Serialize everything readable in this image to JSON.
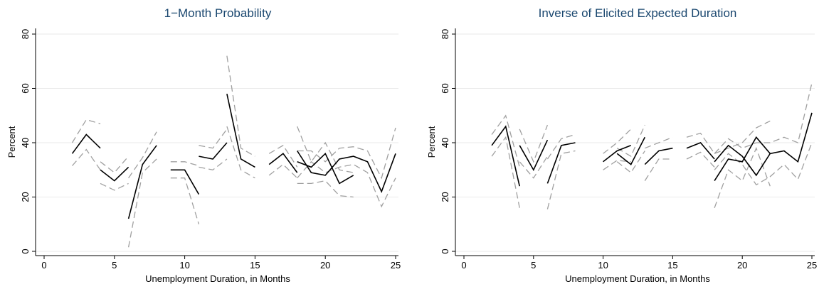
{
  "figure": {
    "panels": [
      {
        "title": "1−Month Probability",
        "xlabel": "Unemployment Duration, in Months",
        "ylabel": "Percent"
      },
      {
        "title": "Inverse of Elicited Expected Duration",
        "xlabel": "Unemployment Duration, in Months",
        "ylabel": "Percent"
      }
    ]
  },
  "chart_data": [
    {
      "type": "line",
      "title": "1−Month Probability",
      "xlabel": "Unemployment Duration, in Months",
      "ylabel": "Percent",
      "xlim": [
        0,
        25
      ],
      "ylim": [
        0,
        80
      ],
      "xticks": [
        0,
        5,
        10,
        15,
        20,
        25
      ],
      "yticks": [
        0,
        20,
        40,
        60,
        80
      ],
      "grid": true,
      "legend": "none",
      "colors": {
        "estimate": "#000000",
        "bounds": "#a0a0a0",
        "grid": "#eaeaea"
      },
      "series": [
        {
          "role": "estimate",
          "style": "solid",
          "segments": [
            [
              [
                2,
                36
              ],
              [
                3,
                43
              ],
              [
                4,
                38
              ]
            ],
            [
              [
                4,
                30
              ],
              [
                5,
                26
              ],
              [
                6,
                31
              ]
            ],
            [
              [
                6,
                12
              ],
              [
                7,
                32
              ],
              [
                8,
                39
              ]
            ],
            [
              [
                9,
                30
              ],
              [
                10,
                30
              ],
              [
                11,
                21
              ]
            ],
            [
              [
                11,
                35
              ],
              [
                12,
                34
              ],
              [
                13,
                40
              ]
            ],
            [
              [
                13,
                58
              ],
              [
                14,
                34
              ],
              [
                15,
                31
              ]
            ],
            [
              [
                16,
                32
              ],
              [
                17,
                36
              ],
              [
                18,
                29
              ]
            ],
            [
              [
                18,
                33
              ],
              [
                19,
                31
              ],
              [
                20,
                36
              ],
              [
                21,
                25
              ],
              [
                22,
                28
              ]
            ],
            [
              [
                18,
                37
              ],
              [
                19,
                29
              ],
              [
                20,
                28
              ],
              [
                21,
                34
              ],
              [
                22,
                35
              ],
              [
                23,
                33
              ],
              [
                24,
                22
              ],
              [
                25,
                36
              ]
            ]
          ]
        },
        {
          "role": "upper bound",
          "style": "dashed",
          "segments": [
            [
              [
                2,
                40
              ],
              [
                3,
                48.5
              ],
              [
                4,
                47
              ]
            ],
            [
              [
                4,
                33
              ],
              [
                5,
                29
              ],
              [
                6,
                35
              ]
            ],
            [
              [
                6,
                27
              ],
              [
                7,
                34.5
              ],
              [
                8,
                44
              ]
            ],
            [
              [
                9,
                33
              ],
              [
                10,
                33
              ],
              [
                11,
                31.5
              ]
            ],
            [
              [
                11,
                39
              ],
              [
                12,
                38
              ],
              [
                13,
                45
              ]
            ],
            [
              [
                13,
                72
              ],
              [
                14,
                38
              ],
              [
                15,
                35
              ]
            ],
            [
              [
                16,
                36
              ],
              [
                17,
                39
              ],
              [
                18,
                31
              ]
            ],
            [
              [
                18,
                46
              ],
              [
                19,
                33
              ],
              [
                20,
                40
              ],
              [
                21,
                30
              ],
              [
                22,
                29
              ]
            ],
            [
              [
                18,
                37
              ],
              [
                19,
                37
              ],
              [
                20,
                33
              ],
              [
                21,
                38
              ],
              [
                22,
                38.5
              ],
              [
                23,
                37
              ],
              [
                24,
                27
              ],
              [
                25,
                45.5
              ]
            ]
          ]
        },
        {
          "role": "lower bound",
          "style": "dashed",
          "segments": [
            [
              [
                2,
                31.5
              ],
              [
                3,
                37.5
              ],
              [
                4,
                30
              ]
            ],
            [
              [
                4,
                25
              ],
              [
                5,
                22.5
              ],
              [
                6,
                25
              ]
            ],
            [
              [
                6,
                1.5
              ],
              [
                7,
                29
              ],
              [
                8,
                34
              ]
            ],
            [
              [
                9,
                27
              ],
              [
                10,
                27
              ],
              [
                11,
                10
              ]
            ],
            [
              [
                11,
                31
              ],
              [
                12,
                30
              ],
              [
                13,
                34
              ]
            ],
            [
              [
                13,
                46
              ],
              [
                14,
                30
              ],
              [
                15,
                27
              ]
            ],
            [
              [
                16,
                28
              ],
              [
                17,
                32
              ],
              [
                18,
                27
              ]
            ],
            [
              [
                18,
                25
              ],
              [
                19,
                25
              ],
              [
                20,
                26
              ],
              [
                21,
                20.5
              ],
              [
                22,
                20
              ]
            ],
            [
              [
                18,
                27
              ],
              [
                19,
                33
              ],
              [
                20,
                29
              ],
              [
                21,
                31
              ],
              [
                22,
                32
              ],
              [
                23,
                29
              ],
              [
                24,
                16.5
              ],
              [
                25,
                27
              ]
            ]
          ]
        }
      ]
    },
    {
      "type": "line",
      "title": "Inverse of Elicited Expected Duration",
      "xlabel": "Unemployment Duration, in Months",
      "ylabel": "Percent",
      "xlim": [
        0,
        25
      ],
      "ylim": [
        0,
        80
      ],
      "xticks": [
        0,
        5,
        10,
        15,
        20,
        25
      ],
      "yticks": [
        0,
        20,
        40,
        60,
        80
      ],
      "grid": true,
      "legend": "none",
      "colors": {
        "estimate": "#000000",
        "bounds": "#a0a0a0",
        "grid": "#eaeaea"
      },
      "series": [
        {
          "role": "estimate",
          "style": "solid",
          "segments": [
            [
              [
                2,
                39
              ],
              [
                3,
                46
              ],
              [
                4,
                24
              ]
            ],
            [
              [
                4,
                39
              ],
              [
                5,
                30
              ],
              [
                6,
                41
              ]
            ],
            [
              [
                6,
                25
              ],
              [
                7,
                39
              ],
              [
                8,
                40
              ]
            ],
            [
              [
                10,
                33
              ],
              [
                11,
                37
              ],
              [
                12,
                39
              ]
            ],
            [
              [
                11,
                36
              ],
              [
                12,
                32
              ],
              [
                13,
                42
              ]
            ],
            [
              [
                13,
                32
              ],
              [
                14,
                37
              ],
              [
                15,
                38
              ]
            ],
            [
              [
                16,
                38
              ],
              [
                17,
                40
              ],
              [
                18,
                34
              ]
            ],
            [
              [
                18,
                26
              ],
              [
                19,
                34
              ],
              [
                20,
                33
              ],
              [
                21,
                42
              ],
              [
                22,
                36
              ]
            ],
            [
              [
                18,
                33
              ],
              [
                19,
                39
              ],
              [
                20,
                35
              ],
              [
                21,
                28
              ],
              [
                22,
                36
              ],
              [
                23,
                37
              ],
              [
                24,
                33
              ],
              [
                25,
                51
              ]
            ]
          ]
        },
        {
          "role": "upper bound",
          "style": "dashed",
          "segments": [
            [
              [
                2,
                43
              ],
              [
                3,
                50
              ],
              [
                4,
                31
              ]
            ],
            [
              [
                4,
                45
              ],
              [
                5,
                33
              ],
              [
                6,
                46.5
              ]
            ],
            [
              [
                6,
                34
              ],
              [
                7,
                41.5
              ],
              [
                8,
                43
              ]
            ],
            [
              [
                10,
                36
              ],
              [
                11,
                40
              ],
              [
                12,
                45
              ]
            ],
            [
              [
                11,
                38
              ],
              [
                12,
                35
              ],
              [
                13,
                46.5
              ]
            ],
            [
              [
                13,
                38
              ],
              [
                14,
                40
              ],
              [
                15,
                42
              ]
            ],
            [
              [
                16,
                42
              ],
              [
                17,
                43.5
              ],
              [
                18,
                36
              ]
            ],
            [
              [
                18,
                36
              ],
              [
                19,
                38
              ],
              [
                20,
                40
              ],
              [
                21,
                45.5
              ],
              [
                22,
                48
              ]
            ],
            [
              [
                18,
                36
              ],
              [
                19,
                41.5
              ],
              [
                20,
                38
              ],
              [
                21,
                40
              ],
              [
                22,
                40
              ],
              [
                23,
                42
              ],
              [
                24,
                40
              ],
              [
                25,
                62
              ]
            ]
          ]
        },
        {
          "role": "lower bound",
          "style": "dashed",
          "segments": [
            [
              [
                2,
                35
              ],
              [
                3,
                42
              ],
              [
                4,
                16
              ]
            ],
            [
              [
                4,
                33
              ],
              [
                5,
                27
              ],
              [
                6,
                35
              ]
            ],
            [
              [
                6,
                15.5
              ],
              [
                7,
                36
              ],
              [
                8,
                37
              ]
            ],
            [
              [
                10,
                30
              ],
              [
                11,
                33.5
              ],
              [
                12,
                33
              ]
            ],
            [
              [
                11,
                33
              ],
              [
                12,
                29
              ],
              [
                13,
                37
              ]
            ],
            [
              [
                13,
                26
              ],
              [
                14,
                34
              ],
              [
                15,
                34
              ]
            ],
            [
              [
                16,
                34
              ],
              [
                17,
                36.5
              ],
              [
                18,
                31
              ]
            ],
            [
              [
                18,
                16
              ],
              [
                19,
                30
              ],
              [
                20,
                26
              ],
              [
                21,
                38
              ],
              [
                22,
                24
              ]
            ],
            [
              [
                18,
                30
              ],
              [
                19,
                36
              ],
              [
                20,
                32
              ],
              [
                21,
                24.5
              ],
              [
                22,
                27.5
              ],
              [
                23,
                32
              ],
              [
                24,
                26.5
              ],
              [
                25,
                40
              ]
            ]
          ]
        }
      ]
    }
  ]
}
